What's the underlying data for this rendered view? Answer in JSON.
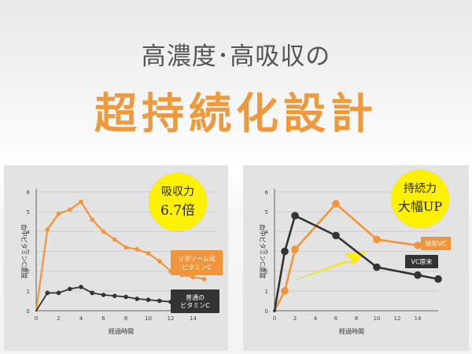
{
  "header": {
    "subtitle": "高濃度･高吸収の",
    "title": "超持続化設計"
  },
  "colors": {
    "orange": "#f0953a",
    "dark": "#333333",
    "badge": "#fff200",
    "title": "#ee9a3c"
  },
  "badges": [
    {
      "line1": "吸収力",
      "line2": "6.7倍"
    },
    {
      "line1": "持続力",
      "line2": "大幅UP"
    }
  ],
  "chart_data": [
    {
      "type": "line",
      "ylabel": "血中ビタミンC濃度",
      "xlabel": "経過時間",
      "xlim": [
        0,
        16
      ],
      "ylim": [
        0,
        6
      ],
      "xticks": [
        "0",
        "2",
        "4",
        "6",
        "8",
        "10",
        "12",
        "14"
      ],
      "yticks": [
        "0",
        "1",
        "2",
        "3",
        "4",
        "5",
        "6"
      ],
      "series": [
        {
          "name": "リポソーム化ビタミンC",
          "label_lines": [
            "リポソーム化",
            "ビタミンC"
          ],
          "color": "orange",
          "x": [
            0,
            1,
            2,
            3,
            4,
            5,
            6,
            7,
            8,
            9,
            10,
            11,
            12,
            13,
            14,
            15
          ],
          "y": [
            0,
            4.1,
            4.9,
            5.1,
            5.5,
            4.6,
            4.0,
            3.6,
            3.2,
            3.1,
            2.9,
            2.5,
            2.0,
            1.8,
            1.7,
            1.6
          ]
        },
        {
          "name": "普通のビタミンC",
          "label_lines": [
            "普通の",
            "ビタミンC"
          ],
          "color": "dark",
          "x": [
            0,
            1,
            2,
            3,
            4,
            5,
            6,
            7,
            8,
            9,
            10,
            11,
            12,
            13,
            14,
            15
          ],
          "y": [
            0,
            0.9,
            0.9,
            1.1,
            1.2,
            0.9,
            0.8,
            0.75,
            0.7,
            0.6,
            0.55,
            0.5,
            0.45,
            0.45,
            0.45,
            0.5
          ]
        }
      ]
    },
    {
      "type": "line",
      "ylabel": "血中ビタミンC濃度",
      "xlabel": "経過時間",
      "xlim": [
        0,
        16
      ],
      "ylim": [
        0,
        6
      ],
      "xticks": [
        "0",
        "2",
        "4",
        "6",
        "8",
        "10",
        "12",
        "14"
      ],
      "yticks": [
        "0",
        "1",
        "2",
        "3",
        "4",
        "5",
        "6"
      ],
      "series": [
        {
          "name": "球形VC",
          "label_lines": [
            "球形VC"
          ],
          "color": "orange",
          "x": [
            0,
            1,
            2,
            6,
            10,
            14,
            16
          ],
          "y": [
            0,
            1.0,
            3.1,
            5.4,
            3.6,
            3.3,
            3.3
          ]
        },
        {
          "name": "VC原末",
          "label_lines": [
            "VC原末"
          ],
          "color": "dark",
          "x": [
            0,
            1,
            2,
            6,
            10,
            14,
            16
          ],
          "y": [
            0,
            3.0,
            4.8,
            3.8,
            2.2,
            1.8,
            1.6
          ]
        }
      ]
    }
  ]
}
